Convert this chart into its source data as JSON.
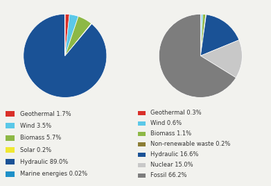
{
  "left_pie": {
    "labels": [
      "Geothermal 1.7%",
      "Wind 3.5%",
      "Biomass 5.7%",
      "Solar 0.2%",
      "Hydraulic 89.0%",
      "Marine energies 0.02%"
    ],
    "values": [
      1.7,
      3.5,
      5.7,
      0.2,
      89.0,
      0.02
    ],
    "colors": [
      "#d9302a",
      "#5bc8e8",
      "#8db846",
      "#f0e832",
      "#1a5296",
      "#1e90c8"
    ]
  },
  "right_pie": {
    "labels": [
      "Geothermal 0.3%",
      "Wind 0.6%",
      "Biomass 1.1%",
      "Non-renewable waste 0.2%",
      "Hydraulic 16.6%",
      "Nuclear 15.0%",
      "Fossil 66.2%"
    ],
    "values": [
      0.3,
      0.6,
      1.1,
      0.2,
      16.6,
      15.0,
      66.2
    ],
    "colors": [
      "#d9302a",
      "#5bc8e8",
      "#8db846",
      "#8b7d35",
      "#1a5296",
      "#c8c8c8",
      "#7d7d7d"
    ]
  },
  "legend_fontsize": 6.0,
  "bg_color": "#f2f2ee"
}
